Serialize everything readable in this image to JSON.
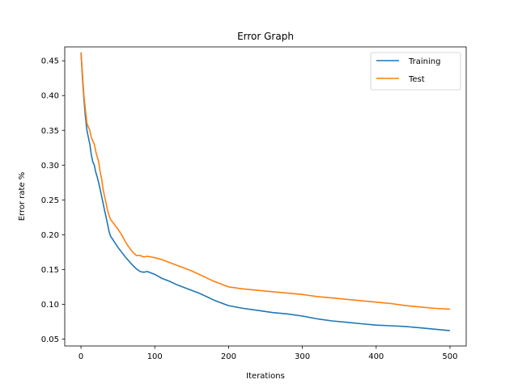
{
  "chart_data": {
    "type": "line",
    "title": "Error Graph",
    "xlabel": "Iterations",
    "ylabel": "Error rate %",
    "xlim": [
      -22,
      522
    ],
    "ylim": [
      0.04,
      0.47
    ],
    "xticks": [
      0,
      100,
      200,
      300,
      400,
      500
    ],
    "yticks": [
      0.05,
      0.1,
      0.15,
      0.2,
      0.25,
      0.3,
      0.35,
      0.4,
      0.45
    ],
    "ytick_labels": [
      "0.05",
      "0.10",
      "0.15",
      "0.20",
      "0.25",
      "0.30",
      "0.35",
      "0.40",
      "0.45"
    ],
    "legend_position": "top-right",
    "grid": false,
    "series": [
      {
        "name": "Training",
        "color": "#1f77b4",
        "x": [
          0,
          2,
          4,
          6,
          8,
          10,
          12,
          14,
          16,
          18,
          20,
          22,
          24,
          26,
          28,
          30,
          32,
          34,
          36,
          38,
          40,
          45,
          50,
          55,
          60,
          65,
          70,
          75,
          80,
          85,
          90,
          95,
          100,
          110,
          120,
          130,
          140,
          150,
          160,
          170,
          180,
          190,
          200,
          220,
          240,
          260,
          280,
          300,
          320,
          340,
          360,
          380,
          400,
          420,
          440,
          460,
          480,
          500
        ],
        "values": [
          0.462,
          0.425,
          0.395,
          0.37,
          0.35,
          0.34,
          0.33,
          0.315,
          0.305,
          0.3,
          0.29,
          0.283,
          0.275,
          0.265,
          0.255,
          0.245,
          0.235,
          0.225,
          0.215,
          0.205,
          0.198,
          0.19,
          0.182,
          0.175,
          0.168,
          0.162,
          0.156,
          0.151,
          0.147,
          0.146,
          0.147,
          0.145,
          0.143,
          0.137,
          0.133,
          0.128,
          0.124,
          0.12,
          0.116,
          0.111,
          0.106,
          0.102,
          0.098,
          0.094,
          0.091,
          0.088,
          0.086,
          0.083,
          0.079,
          0.076,
          0.074,
          0.072,
          0.07,
          0.069,
          0.068,
          0.066,
          0.064,
          0.062
        ]
      },
      {
        "name": "Test",
        "color": "#ff7f0e",
        "x": [
          0,
          2,
          4,
          6,
          8,
          10,
          12,
          14,
          16,
          18,
          20,
          22,
          24,
          26,
          28,
          30,
          32,
          34,
          36,
          38,
          40,
          45,
          50,
          55,
          60,
          65,
          70,
          75,
          80,
          85,
          90,
          95,
          100,
          110,
          120,
          130,
          140,
          150,
          160,
          170,
          180,
          190,
          200,
          220,
          240,
          260,
          280,
          300,
          320,
          340,
          360,
          380,
          400,
          420,
          440,
          460,
          480,
          500
        ],
        "values": [
          0.462,
          0.43,
          0.4,
          0.38,
          0.36,
          0.355,
          0.35,
          0.34,
          0.335,
          0.33,
          0.32,
          0.312,
          0.305,
          0.29,
          0.28,
          0.265,
          0.255,
          0.245,
          0.235,
          0.228,
          0.222,
          0.215,
          0.208,
          0.2,
          0.19,
          0.182,
          0.175,
          0.17,
          0.17,
          0.168,
          0.169,
          0.168,
          0.167,
          0.164,
          0.16,
          0.156,
          0.152,
          0.148,
          0.143,
          0.138,
          0.133,
          0.129,
          0.125,
          0.122,
          0.12,
          0.118,
          0.116,
          0.114,
          0.111,
          0.109,
          0.107,
          0.105,
          0.103,
          0.101,
          0.098,
          0.096,
          0.094,
          0.093
        ]
      }
    ]
  }
}
